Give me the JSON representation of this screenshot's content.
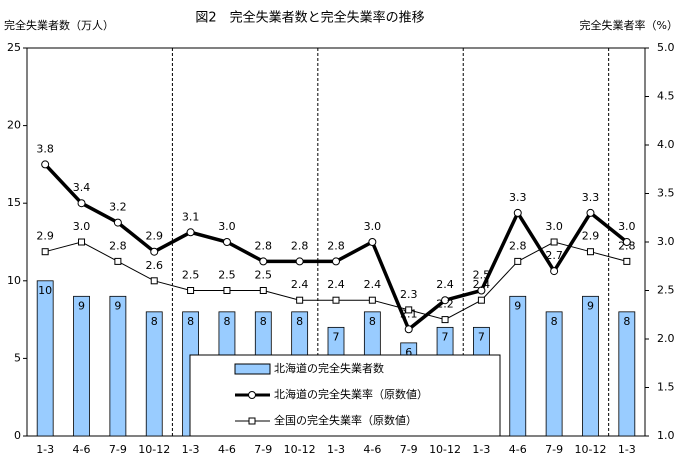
{
  "chart_data": {
    "type": "bar-line",
    "title": "図2　完全失業者数と完全失業率の推移",
    "y_label": "完全失業者数（万人）",
    "y2_label": "完全失業者率（%）",
    "categories": [
      "1-3",
      "4-6",
      "7-9",
      "10-12",
      "1-3",
      "4-6",
      "7-9",
      "10-12",
      "1-3",
      "4-6",
      "7-9",
      "10-12",
      "1-3",
      "4-6",
      "7-9",
      "10-12",
      "1-3"
    ],
    "ylim": [
      0,
      25
    ],
    "yticks": [
      0,
      5,
      10,
      15,
      20,
      25
    ],
    "y2lim": [
      1.0,
      5.0
    ],
    "y2ticks": [
      {
        "value": 1.0,
        "label": "1.0"
      },
      1.5,
      {
        "value": 2.0,
        "label": "2.0"
      },
      2.5,
      {
        "value": 3.0,
        "label": "3.0"
      },
      3.5,
      {
        "value": 4.0,
        "label": "4.0"
      },
      4.5,
      {
        "value": 5.0,
        "label": "5.0"
      }
    ],
    "series": [
      {
        "name": "北海道の完全失業者数",
        "type": "bar",
        "color": "#99ccff",
        "values": [
          10,
          9,
          9,
          8,
          8,
          8,
          8,
          8,
          7,
          8,
          6,
          7,
          7,
          9,
          8,
          9,
          8
        ]
      },
      {
        "name": "北海道の完全失業率（原数値）",
        "type": "line",
        "axis": "y2",
        "color": "#000000",
        "values": [
          3.8,
          3.4,
          3.2,
          2.9,
          3.1,
          3.0,
          2.8,
          2.8,
          2.8,
          3.0,
          2.1,
          2.4,
          2.5,
          3.3,
          2.7,
          3.3,
          3.0
        ],
        "value_labels": [
          "3.8",
          "3.4",
          "3.2",
          "2.9",
          "3.1",
          "3.0",
          "2.8",
          "2.8",
          "2.8",
          "3.0",
          "2.1",
          "2.4",
          "2.5",
          "3.3",
          "2.7",
          "3.3",
          "3.0"
        ]
      },
      {
        "name": "全国の完全失業率（原数値）",
        "type": "line",
        "axis": "y2",
        "color": "#000000",
        "values": [
          2.9,
          3.0,
          2.8,
          2.6,
          2.5,
          2.5,
          2.5,
          2.4,
          2.4,
          2.4,
          2.3,
          2.2,
          2.4,
          2.8,
          3.0,
          2.9,
          2.8
        ],
        "value_labels": [
          "2.9",
          "3.0",
          "2.8",
          "2.6",
          "2.5",
          "2.5",
          "2.5",
          "2.4",
          "2.4",
          "2.4",
          "2.3",
          "2.2",
          "2.4",
          "2.8",
          "3.0",
          "2.9",
          "2.8"
        ]
      }
    ]
  }
}
